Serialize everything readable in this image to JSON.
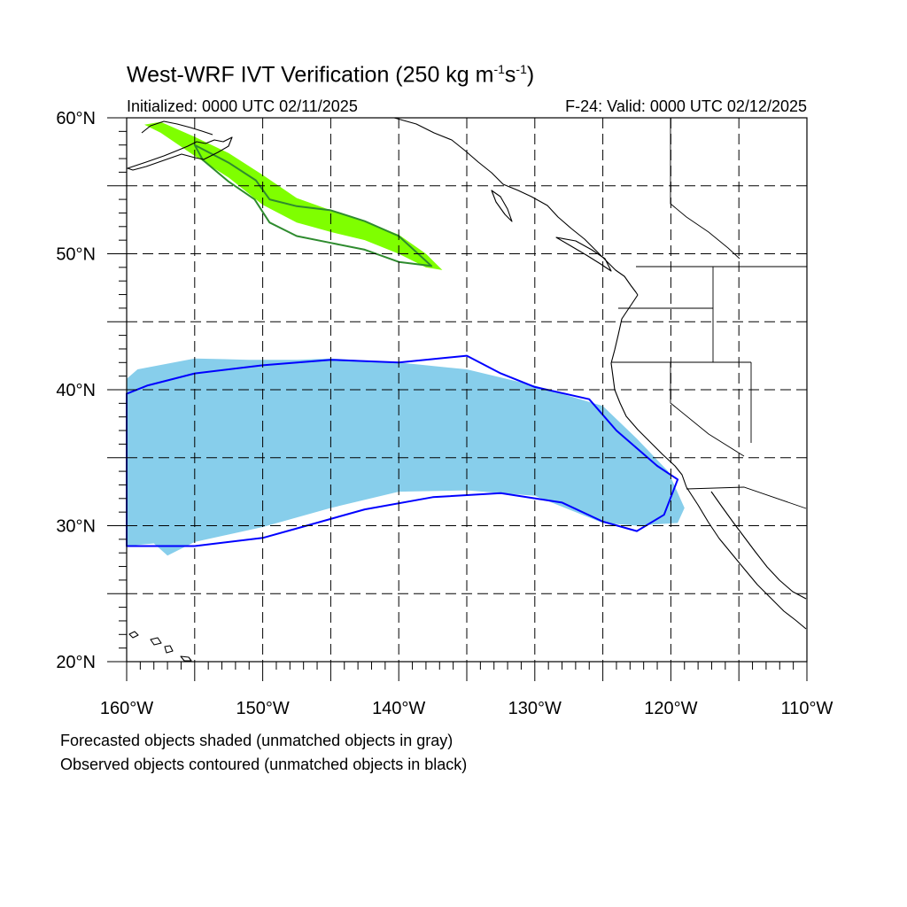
{
  "header": {
    "title": "West-WRF IVT Verification (250 kg m",
    "title_sup1": "-1",
    "title_mid": "s",
    "title_sup2": "-1",
    "title_end": ")",
    "initialized": "Initialized: 0000 UTC 02/11/2025",
    "valid": "F-24: Valid: 0000 UTC 02/12/2025"
  },
  "map": {
    "projection": "cylindrical equidistant",
    "lon_range": [
      -160,
      -110
    ],
    "lat_range": [
      20,
      60
    ],
    "gridlines": "dashed",
    "lat_labels": [
      "60°N",
      "50°N",
      "40°N",
      "30°N",
      "20°N"
    ],
    "lon_labels": [
      "160°W",
      "150°W",
      "140°W",
      "130°W",
      "120°W",
      "110°W"
    ],
    "colors": {
      "forecast_matched_1": "#7fff00",
      "observed_matched_1": "#2e8b2e",
      "forecast_matched_2": "#87ceeb",
      "observed_matched_2": "#0000ff",
      "coastline": "#000000",
      "grid": "#000000"
    },
    "objects": [
      {
        "kind": "forecast-shaded",
        "color_key": "forecast_matched_1",
        "outline_lonlat": [
          [
            -157.5,
            59.7
          ],
          [
            -155,
            58.6
          ],
          [
            -152.5,
            57.4
          ],
          [
            -150,
            55.8
          ],
          [
            -147.5,
            54.1
          ],
          [
            -145,
            53.2
          ],
          [
            -142.5,
            52.4
          ],
          [
            -140,
            51.4
          ],
          [
            -138,
            50
          ],
          [
            -136.8,
            48.8
          ],
          [
            -138,
            49
          ],
          [
            -140,
            50
          ],
          [
            -142.5,
            51
          ],
          [
            -145,
            51.6
          ],
          [
            -147.5,
            52.3
          ],
          [
            -150,
            53.6
          ],
          [
            -152.5,
            55.6
          ],
          [
            -155,
            57.2
          ],
          [
            -157.5,
            58.9
          ],
          [
            -158.7,
            59.5
          ]
        ]
      },
      {
        "kind": "observed-contour",
        "color_key": "observed_matched_1",
        "outline_lonlat": [
          [
            -155,
            58
          ],
          [
            -152.5,
            56.7
          ],
          [
            -150.5,
            55.4
          ],
          [
            -149.5,
            54
          ],
          [
            -147.5,
            53.5
          ],
          [
            -145,
            53.2
          ],
          [
            -142.5,
            52.4
          ],
          [
            -140,
            51.3
          ],
          [
            -137.6,
            49.1
          ],
          [
            -140,
            49.4
          ],
          [
            -142.5,
            50.3
          ],
          [
            -145,
            50.8
          ],
          [
            -147.5,
            51.3
          ],
          [
            -149.5,
            52.3
          ],
          [
            -150.6,
            54
          ],
          [
            -152.5,
            55.3
          ],
          [
            -154.4,
            56.9
          ]
        ]
      },
      {
        "kind": "forecast-shaded",
        "color_key": "forecast_matched_2",
        "outline_lonlat": [
          [
            -159.2,
            41.5
          ],
          [
            -155,
            42.3
          ],
          [
            -151,
            42.2
          ],
          [
            -147.5,
            42.2
          ],
          [
            -145,
            42.3
          ],
          [
            -140,
            42
          ],
          [
            -135,
            41.5
          ],
          [
            -130,
            40.3
          ],
          [
            -125,
            38.8
          ],
          [
            -122.5,
            36.4
          ],
          [
            -120.2,
            34
          ],
          [
            -119,
            31.3
          ],
          [
            -119.5,
            30.2
          ],
          [
            -122.5,
            30
          ],
          [
            -125,
            30.2
          ],
          [
            -127.5,
            31.2
          ],
          [
            -130,
            32.2
          ],
          [
            -135,
            32.6
          ],
          [
            -140,
            32.5
          ],
          [
            -145,
            31.3
          ],
          [
            -150,
            29.9
          ],
          [
            -155,
            28.8
          ],
          [
            -157,
            27.8
          ],
          [
            -158,
            28.7
          ],
          [
            -160,
            28.5
          ],
          [
            -160,
            40.8
          ]
        ]
      },
      {
        "kind": "observed-contour",
        "color_key": "observed_matched_2",
        "outline_lonlat": [
          [
            -160,
            39.7
          ],
          [
            -158.5,
            40.3
          ],
          [
            -155,
            41.2
          ],
          [
            -150,
            41.8
          ],
          [
            -145,
            42.2
          ],
          [
            -140,
            42
          ],
          [
            -135,
            42.5
          ],
          [
            -132.5,
            41.2
          ],
          [
            -130,
            40.2
          ],
          [
            -126,
            39.3
          ],
          [
            -124,
            37
          ],
          [
            -121,
            34.4
          ],
          [
            -119.5,
            33.4
          ],
          [
            -120.5,
            30.8
          ],
          [
            -122.5,
            29.6
          ],
          [
            -125,
            30.3
          ],
          [
            -128,
            31.7
          ],
          [
            -132.5,
            32.4
          ],
          [
            -137.5,
            32.1
          ],
          [
            -142.5,
            31.2
          ],
          [
            -147.5,
            29.8
          ],
          [
            -150,
            29.1
          ],
          [
            -155,
            28.5
          ],
          [
            -160,
            28.5
          ]
        ]
      }
    ]
  },
  "footer": {
    "line1": "Forecasted objects shaded (unmatched objects in gray)",
    "line2": "Observed objects contoured (unmatched objects in black)"
  }
}
